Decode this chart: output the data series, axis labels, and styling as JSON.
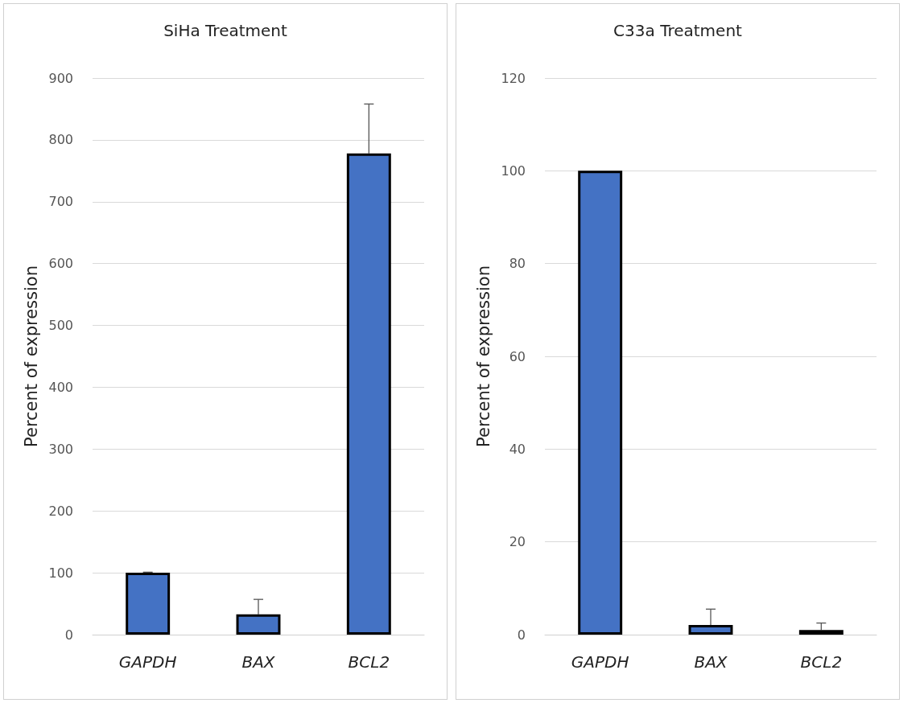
{
  "chart_data": [
    {
      "type": "bar",
      "title": "SiHa Treatment",
      "ylabel": "Percent of expression",
      "categories": [
        "GAPDH",
        "BAX",
        "BCL2"
      ],
      "values": [
        100,
        33,
        778
      ],
      "errors": [
        [
          100,
          101
        ],
        [
          33,
          57
        ],
        [
          778,
          858
        ]
      ],
      "color": "#4472c4",
      "ylim": [
        0,
        900
      ],
      "yticks": [
        0,
        100,
        200,
        300,
        400,
        500,
        600,
        700,
        800,
        900
      ],
      "grid": "y"
    },
    {
      "type": "bar",
      "title": "C33a Treatment",
      "ylabel": "Percent of expression",
      "categories": [
        "GAPDH",
        "BAX",
        "BCL2"
      ],
      "values": [
        100,
        2.1,
        1.0
      ],
      "errors": [
        null,
        [
          2.1,
          5.5
        ],
        [
          1.0,
          2.5
        ]
      ],
      "color": "#4472c4",
      "ylim": [
        0,
        120
      ],
      "yticks": [
        0,
        20,
        40,
        60,
        80,
        100,
        120
      ],
      "grid": "y"
    }
  ]
}
